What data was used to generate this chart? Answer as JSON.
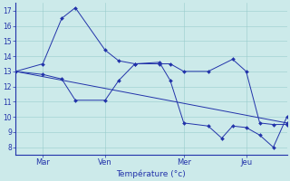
{
  "bg_color": "#cceaea",
  "line_color": "#2233aa",
  "grid_color": "#99cccc",
  "xlabel": "Température (°c)",
  "ylim": [
    7.5,
    17.5
  ],
  "yticks": [
    8,
    9,
    10,
    11,
    12,
    13,
    14,
    15,
    16,
    17
  ],
  "xlim": [
    0,
    100
  ],
  "x_tick_pos": [
    10,
    33,
    62,
    85
  ],
  "x_tick_labels": [
    "Mar",
    "Ven",
    "Mer",
    "Jeu"
  ],
  "s_max_x": [
    0,
    10,
    17,
    22,
    33,
    38,
    44,
    53,
    57,
    62,
    71,
    80,
    85,
    90,
    95,
    100
  ],
  "s_max_y": [
    13.0,
    13.5,
    16.5,
    17.2,
    14.4,
    13.7,
    13.5,
    13.5,
    13.5,
    13.0,
    13.0,
    13.8,
    13.0,
    9.6,
    9.5,
    9.5
  ],
  "s_min_x": [
    0,
    10,
    17,
    22,
    33,
    38,
    44,
    53,
    57,
    62,
    71,
    76,
    80,
    85,
    90,
    95,
    100
  ],
  "s_min_y": [
    13.0,
    12.8,
    12.5,
    11.1,
    11.1,
    12.4,
    13.5,
    13.6,
    12.4,
    9.6,
    9.4,
    8.6,
    9.4,
    9.3,
    8.8,
    8.0,
    10.0
  ],
  "s_trend_x": [
    0,
    100
  ],
  "s_trend_y": [
    13.0,
    9.6
  ]
}
